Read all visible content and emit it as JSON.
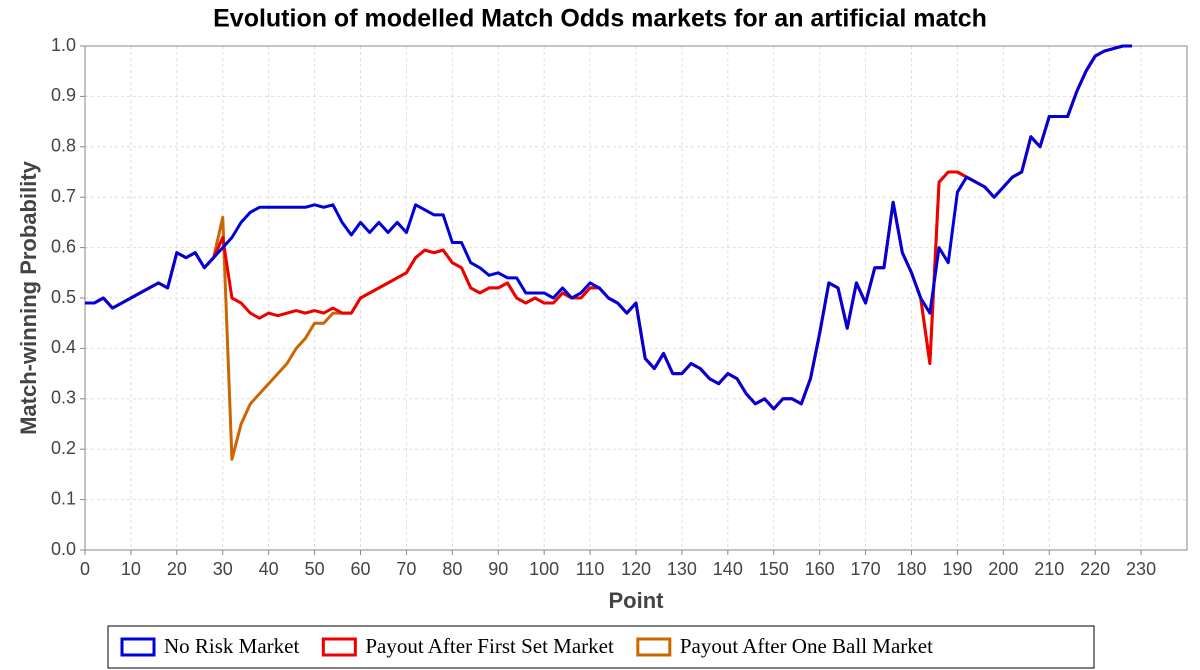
{
  "chart_data": {
    "type": "line",
    "title": "Evolution of modelled Match Odds markets for an artificial match",
    "x_label": "Point",
    "y_label": "Match-winning Probability",
    "xlim": [
      0,
      240
    ],
    "ylim": [
      0,
      1
    ],
    "xticks": [
      0,
      10,
      20,
      30,
      40,
      50,
      60,
      70,
      80,
      90,
      100,
      110,
      120,
      130,
      140,
      150,
      160,
      170,
      180,
      190,
      200,
      210,
      220,
      230
    ],
    "yticks": [
      {
        "value": 0,
        "label": "0.0"
      },
      {
        "value": 0.1,
        "label": "0.1"
      },
      {
        "value": 0.2,
        "label": "0.2"
      },
      {
        "value": 0.3,
        "label": "0.3"
      },
      {
        "value": 0.4,
        "label": "0.4"
      },
      {
        "value": 0.5,
        "label": "0.5"
      },
      {
        "value": 0.6,
        "label": "0.6"
      },
      {
        "value": 0.7,
        "label": "0.7"
      },
      {
        "value": 0.8,
        "label": "0.8"
      },
      {
        "value": 0.9,
        "label": "0.9"
      },
      {
        "value": 1,
        "label": "1.0"
      }
    ],
    "grid": true,
    "legend": "bottom",
    "x": [
      0,
      2,
      4,
      6,
      8,
      10,
      12,
      14,
      16,
      18,
      20,
      22,
      24,
      26,
      28,
      30,
      32,
      34,
      36,
      38,
      40,
      42,
      44,
      46,
      48,
      50,
      52,
      54,
      56,
      58,
      60,
      62,
      64,
      66,
      68,
      70,
      72,
      74,
      76,
      78,
      80,
      82,
      84,
      86,
      88,
      90,
      92,
      94,
      96,
      98,
      100,
      102,
      104,
      106,
      108,
      110,
      112,
      114,
      116,
      118,
      120,
      122,
      124,
      126,
      128,
      130,
      132,
      134,
      136,
      138,
      140,
      142,
      144,
      146,
      148,
      150,
      152,
      154,
      156,
      158,
      160,
      162,
      164,
      166,
      168,
      170,
      172,
      174,
      176,
      178,
      180,
      182,
      184,
      186,
      188,
      190,
      192,
      194,
      196,
      198,
      200,
      202,
      204,
      206,
      208,
      210,
      212,
      214,
      216,
      218,
      220,
      222,
      224,
      226,
      228
    ],
    "series": [
      {
        "name": "Payout After One Ball Market",
        "color": "#cc6600",
        "values": [
          0.49,
          0.49,
          0.5,
          0.48,
          0.49,
          0.5,
          0.51,
          0.52,
          0.53,
          0.52,
          0.59,
          0.58,
          0.59,
          0.56,
          0.58,
          0.66,
          0.18,
          0.25,
          0.29,
          0.31,
          0.33,
          0.35,
          0.37,
          0.4,
          0.42,
          0.45,
          0.45,
          0.47,
          0.47,
          0.47,
          0.5,
          0.51,
          0.52,
          0.53,
          0.54,
          0.55,
          0.58,
          0.595,
          0.59,
          0.595,
          0.57,
          0.56,
          0.52,
          0.51,
          0.52,
          0.52,
          0.53,
          0.5,
          0.49,
          0.5,
          0.49,
          0.49,
          0.51,
          0.5,
          0.5,
          0.52,
          0.52,
          0.5,
          0.49,
          0.47,
          0.49,
          0.38,
          0.36,
          0.39,
          0.35,
          0.35,
          0.37,
          0.36,
          0.34,
          0.33,
          0.35,
          0.34,
          0.31,
          0.29,
          0.3,
          0.28,
          0.3,
          0.3,
          0.29,
          0.34,
          0.43,
          0.53,
          0.52,
          0.44,
          0.53,
          0.49,
          0.56,
          0.56,
          0.69,
          0.59,
          0.55,
          0.5,
          0.37,
          0.73,
          0.75,
          0.75,
          0.74,
          0.73,
          0.72,
          0.7,
          0.72,
          0.74,
          0.75,
          0.82,
          0.8,
          0.86,
          0.86,
          0.86,
          0.91,
          0.95,
          0.98,
          0.99,
          0.995,
          1.0,
          1.0
        ]
      },
      {
        "name": "Payout After First Set Market",
        "color": "#ee0000",
        "values": [
          0.49,
          0.49,
          0.5,
          0.48,
          0.49,
          0.5,
          0.51,
          0.52,
          0.53,
          0.52,
          0.59,
          0.58,
          0.59,
          0.56,
          0.58,
          0.62,
          0.5,
          0.49,
          0.47,
          0.46,
          0.47,
          0.465,
          0.47,
          0.475,
          0.47,
          0.475,
          0.47,
          0.48,
          0.47,
          0.47,
          0.5,
          0.51,
          0.52,
          0.53,
          0.54,
          0.55,
          0.58,
          0.595,
          0.59,
          0.595,
          0.57,
          0.56,
          0.52,
          0.51,
          0.52,
          0.52,
          0.53,
          0.5,
          0.49,
          0.5,
          0.49,
          0.49,
          0.51,
          0.5,
          0.5,
          0.52,
          0.52,
          0.5,
          0.49,
          0.47,
          0.49,
          0.38,
          0.36,
          0.39,
          0.35,
          0.35,
          0.37,
          0.36,
          0.34,
          0.33,
          0.35,
          0.34,
          0.31,
          0.29,
          0.3,
          0.28,
          0.3,
          0.3,
          0.29,
          0.34,
          0.43,
          0.53,
          0.52,
          0.44,
          0.53,
          0.49,
          0.56,
          0.56,
          0.69,
          0.59,
          0.55,
          0.5,
          0.37,
          0.73,
          0.75,
          0.75,
          0.74,
          0.73,
          0.72,
          0.7,
          0.72,
          0.74,
          0.75,
          0.82,
          0.8,
          0.86,
          0.86,
          0.86,
          0.91,
          0.95,
          0.98,
          0.99,
          0.995,
          1.0,
          1.0
        ]
      },
      {
        "name": "No Risk Market",
        "color": "#0000dd",
        "values": [
          0.49,
          0.49,
          0.5,
          0.48,
          0.49,
          0.5,
          0.51,
          0.52,
          0.53,
          0.52,
          0.59,
          0.58,
          0.59,
          0.56,
          0.58,
          0.6,
          0.62,
          0.65,
          0.67,
          0.68,
          0.68,
          0.68,
          0.68,
          0.68,
          0.68,
          0.685,
          0.68,
          0.685,
          0.65,
          0.625,
          0.65,
          0.63,
          0.65,
          0.63,
          0.65,
          0.63,
          0.685,
          0.675,
          0.665,
          0.665,
          0.61,
          0.61,
          0.57,
          0.56,
          0.545,
          0.55,
          0.54,
          0.54,
          0.51,
          0.51,
          0.51,
          0.5,
          0.52,
          0.5,
          0.51,
          0.53,
          0.52,
          0.5,
          0.49,
          0.47,
          0.49,
          0.38,
          0.36,
          0.39,
          0.35,
          0.35,
          0.37,
          0.36,
          0.34,
          0.33,
          0.35,
          0.34,
          0.31,
          0.29,
          0.3,
          0.28,
          0.3,
          0.3,
          0.29,
          0.34,
          0.43,
          0.53,
          0.52,
          0.44,
          0.53,
          0.49,
          0.56,
          0.56,
          0.69,
          0.59,
          0.55,
          0.5,
          0.47,
          0.6,
          0.57,
          0.71,
          0.74,
          0.73,
          0.72,
          0.7,
          0.72,
          0.74,
          0.75,
          0.82,
          0.8,
          0.86,
          0.86,
          0.86,
          0.91,
          0.95,
          0.98,
          0.99,
          0.995,
          1.0,
          1.0
        ]
      }
    ]
  }
}
